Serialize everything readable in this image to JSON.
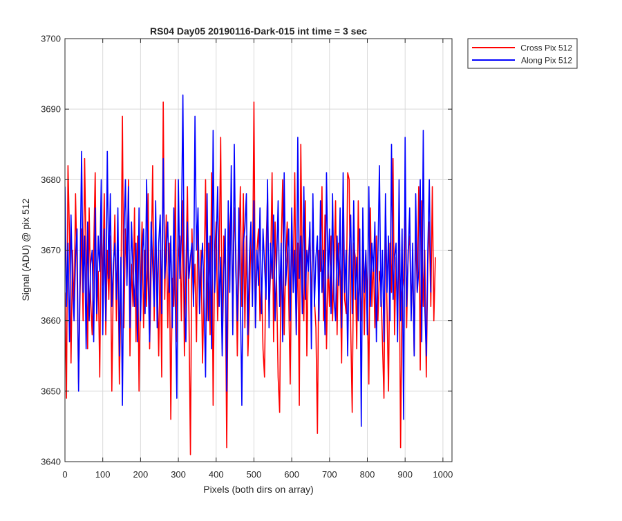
{
  "colors": {
    "cross": "#ff0000",
    "along": "#0000ff",
    "grid": "#d9d9d9",
    "axis": "#262626"
  },
  "chart_data": {
    "type": "line",
    "title": "RS04 Day05 20190116-Dark-015 int time = 3 sec",
    "xlabel": "Pixels (both dirs on array)",
    "ylabel": "Signal (ADU) @ pix 512",
    "xlim": [
      0,
      1024
    ],
    "ylim": [
      3640,
      3700
    ],
    "xticks": [
      0,
      100,
      200,
      300,
      400,
      500,
      600,
      700,
      800,
      900,
      1000
    ],
    "yticks": [
      3640,
      3650,
      3660,
      3670,
      3680,
      3690,
      3700
    ],
    "grid": true,
    "legend_position": "outside-top-right",
    "series": [
      {
        "name": "Cross Pix 512",
        "color": "#ff0000",
        "x_step": 4,
        "values": [
          3664,
          3649,
          3682,
          3672,
          3654,
          3670,
          3661,
          3678,
          3667,
          3651,
          3664,
          3673,
          3660,
          3683,
          3669,
          3656,
          3676,
          3663,
          3658,
          3670,
          3681,
          3660,
          3667,
          3652,
          3674,
          3665,
          3678,
          3658,
          3670,
          3663,
          3672,
          3650,
          3666,
          3675,
          3660,
          3671,
          3651,
          3664,
          3689,
          3659,
          3673,
          3666,
          3680,
          3655,
          3668,
          3662,
          3676,
          3657,
          3672,
          3650,
          3665,
          3674,
          3659,
          3670,
          3662,
          3678,
          3656,
          3667,
          3682,
          3660,
          3672,
          3666,
          3655,
          3670,
          3652,
          3691,
          3663,
          3675,
          3659,
          3671,
          3646,
          3666,
          3662,
          3680,
          3657,
          3669,
          3672,
          3660,
          3677,
          3655,
          3667,
          3679,
          3661,
          3641,
          3673,
          3663,
          3668,
          3657,
          3675,
          3662,
          3670,
          3654,
          3665,
          3680,
          3660,
          3671,
          3658,
          3681,
          3648,
          3669,
          3674,
          3660,
          3669,
          3686,
          3656,
          3672,
          3668,
          3642,
          3667,
          3673,
          3677,
          3659,
          3676,
          3670,
          3655,
          3668,
          3679,
          3662,
          3678,
          3659,
          3672,
          3655,
          3662,
          3673,
          3664,
          3691,
          3659,
          3670,
          3673,
          3660,
          3666,
          3656,
          3652,
          3670,
          3678,
          3661,
          3667,
          3681,
          3657,
          3674,
          3665,
          3652,
          3647,
          3670,
          3680,
          3658,
          3668,
          3674,
          3663,
          3651,
          3672,
          3666,
          3681,
          3658,
          3671,
          3648,
          3685,
          3666,
          3660,
          3677,
          3655,
          3669,
          3673,
          3661,
          3676,
          3663,
          3659,
          3644,
          3670,
          3667,
          3679,
          3660,
          3675,
          3656,
          3668,
          3662,
          3672,
          3660,
          3668,
          3677,
          3658,
          3671,
          3666,
          3654,
          3675,
          3663,
          3661,
          3681,
          3680,
          3659,
          3647,
          3671,
          3669,
          3656,
          3677,
          3665,
          3660,
          3673,
          3658,
          3670,
          3663,
          3651,
          3676,
          3662,
          3669,
          3659,
          3672,
          3660,
          3667,
          3665,
          3657,
          3649,
          3675,
          3662,
          3650,
          3671,
          3664,
          3683,
          3658,
          3669,
          3660,
          3673,
          3642,
          3664,
          3666,
          3677,
          3659,
          3670,
          3672,
          3661,
          3668,
          3655,
          3673,
          3664,
          3679,
          3653,
          3677,
          3662,
          3670,
          3652,
          3668,
          3674,
          3662,
          3679,
          3660,
          3669
        ]
      },
      {
        "name": "Along Pix 512",
        "color": "#0000ff",
        "x_step": 4,
        "values": [
          3679,
          3662,
          3671,
          3657,
          3675,
          3665,
          3660,
          3669,
          3673,
          3650,
          3667,
          3684,
          3664,
          3672,
          3656,
          3674,
          3660,
          3668,
          3670,
          3657,
          3676,
          3661,
          3672,
          3667,
          3680,
          3658,
          3673,
          3660,
          3684,
          3666,
          3678,
          3662,
          3668,
          3671,
          3663,
          3676,
          3655,
          3669,
          3648,
          3672,
          3680,
          3665,
          3679,
          3659,
          3674,
          3667,
          3662,
          3671,
          3657,
          3676,
          3660,
          3669,
          3673,
          3661,
          3680,
          3666,
          3657,
          3674,
          3668,
          3662,
          3677,
          3659,
          3671,
          3675,
          3661,
          3683,
          3666,
          3670,
          3674,
          3664,
          3672,
          3659,
          3676,
          3662,
          3649,
          3680,
          3666,
          3672,
          3692,
          3663,
          3657,
          3674,
          3666,
          3669,
          3671,
          3662,
          3689,
          3670,
          3676,
          3661,
          3667,
          3671,
          3663,
          3652,
          3678,
          3660,
          3672,
          3656,
          3687,
          3664,
          3670,
          3679,
          3662,
          3669,
          3655,
          3667,
          3673,
          3650,
          3677,
          3664,
          3682,
          3658,
          3685,
          3667,
          3660,
          3676,
          3664,
          3648,
          3671,
          3673,
          3678,
          3658,
          3669,
          3674,
          3662,
          3677,
          3659,
          3670,
          3665,
          3676,
          3661,
          3673,
          3668,
          3663,
          3680,
          3659,
          3671,
          3666,
          3675,
          3660,
          3668,
          3677,
          3662,
          3671,
          3657,
          3681,
          3665,
          3669,
          3673,
          3660,
          3676,
          3664,
          3670,
          3658,
          3686,
          3666,
          3672,
          3661,
          3679,
          3663,
          3670,
          3667,
          3674,
          3656,
          3678,
          3662,
          3669,
          3672,
          3660,
          3677,
          3664,
          3670,
          3658,
          3681,
          3666,
          3673,
          3661,
          3678,
          3663,
          3660,
          3672,
          3665,
          3676,
          3659,
          3681,
          3664,
          3670,
          3655,
          3669,
          3675,
          3661,
          3677,
          3663,
          3669,
          3660,
          3673,
          3645,
          3676,
          3664,
          3670,
          3658,
          3679,
          3662,
          3671,
          3667,
          3674,
          3657,
          3669,
          3682,
          3662,
          3670,
          3657,
          3678,
          3664,
          3672,
          3660,
          3685,
          3663,
          3669,
          3671,
          3657,
          3680,
          3660,
          3673,
          3646,
          3686,
          3662,
          3669,
          3676,
          3660,
          3671,
          3655,
          3678,
          3664,
          3667,
          3680,
          3657,
          3687,
          3662,
          3655,
          3670,
          3680,
          3664
        ]
      }
    ]
  }
}
